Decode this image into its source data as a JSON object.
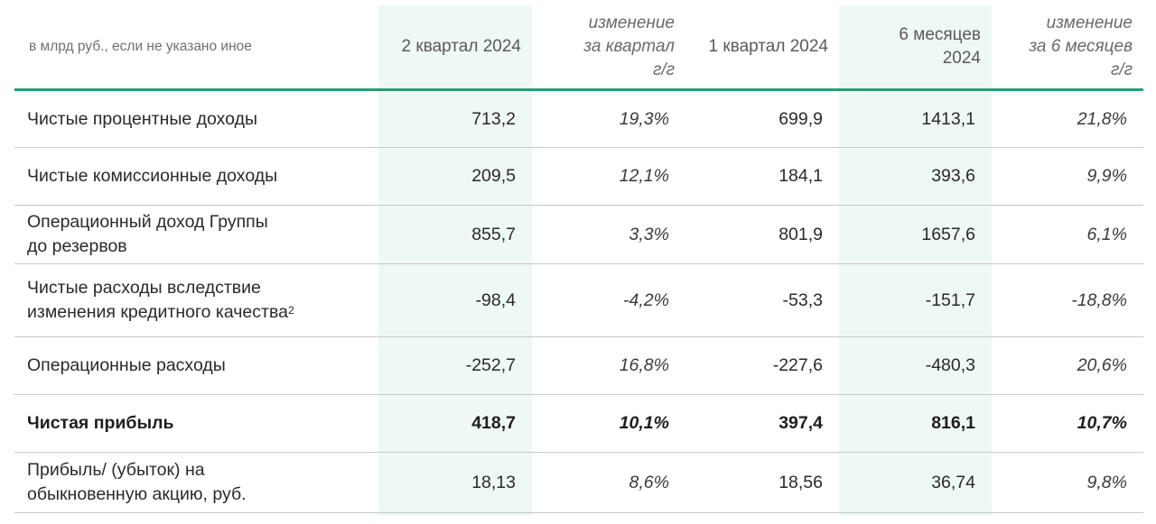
{
  "header": {
    "label": "в млрд руб., если не указано иное",
    "q2_2024": "2 квартал 2024",
    "q_change": [
      "изменение",
      "за квартал",
      "г/г"
    ],
    "q1_2024": "1 квартал 2024",
    "h1_2024": [
      "6 месяцев",
      "2024"
    ],
    "h1_change": [
      "изменение",
      "за 6 месяцев",
      "г/г"
    ]
  },
  "rows": [
    {
      "label": [
        "Чистые процентные доходы"
      ],
      "q2": "713,2",
      "q_chg": "19,3%",
      "q1": "699,9",
      "h1": "1413,1",
      "h1_chg": "21,8%"
    },
    {
      "label": [
        "Чистые комиссионные доходы"
      ],
      "q2": "209,5",
      "q_chg": "12,1%",
      "q1": "184,1",
      "h1": "393,6",
      "h1_chg": "9,9%"
    },
    {
      "label": [
        "Операционный доход Группы",
        "до резервов"
      ],
      "q2": "855,7",
      "q_chg": "3,3%",
      "q1": "801,9",
      "h1": "1657,6",
      "h1_chg": "6,1%"
    },
    {
      "label": [
        "Чистые расходы вследствие",
        "изменения кредитного качества"
      ],
      "footnote": "2",
      "q2": "-98,4",
      "q_chg": "-4,2%",
      "q1": "-53,3",
      "h1": "-151,7",
      "h1_chg": "-18,8%"
    },
    {
      "label": [
        "Операционные расходы"
      ],
      "q2": "-252,7",
      "q_chg": "16,8%",
      "q1": "-227,6",
      "h1": "-480,3",
      "h1_chg": "20,6%"
    },
    {
      "label": [
        "Чистая прибыль"
      ],
      "q2": "418,7",
      "q_chg": "10,1%",
      "q1": "397,4",
      "h1": "816,1",
      "h1_chg": "10,7%"
    },
    {
      "label": [
        "Прибыль/ (убыток) на",
        "обыкновенную акцию, руб."
      ],
      "q2": "18,13",
      "q_chg": "8,6%",
      "q1": "18,56",
      "h1": "36,74",
      "h1_chg": "9,8%"
    }
  ],
  "colors": {
    "accent": "#21a175",
    "shade": "#eef8f4"
  }
}
